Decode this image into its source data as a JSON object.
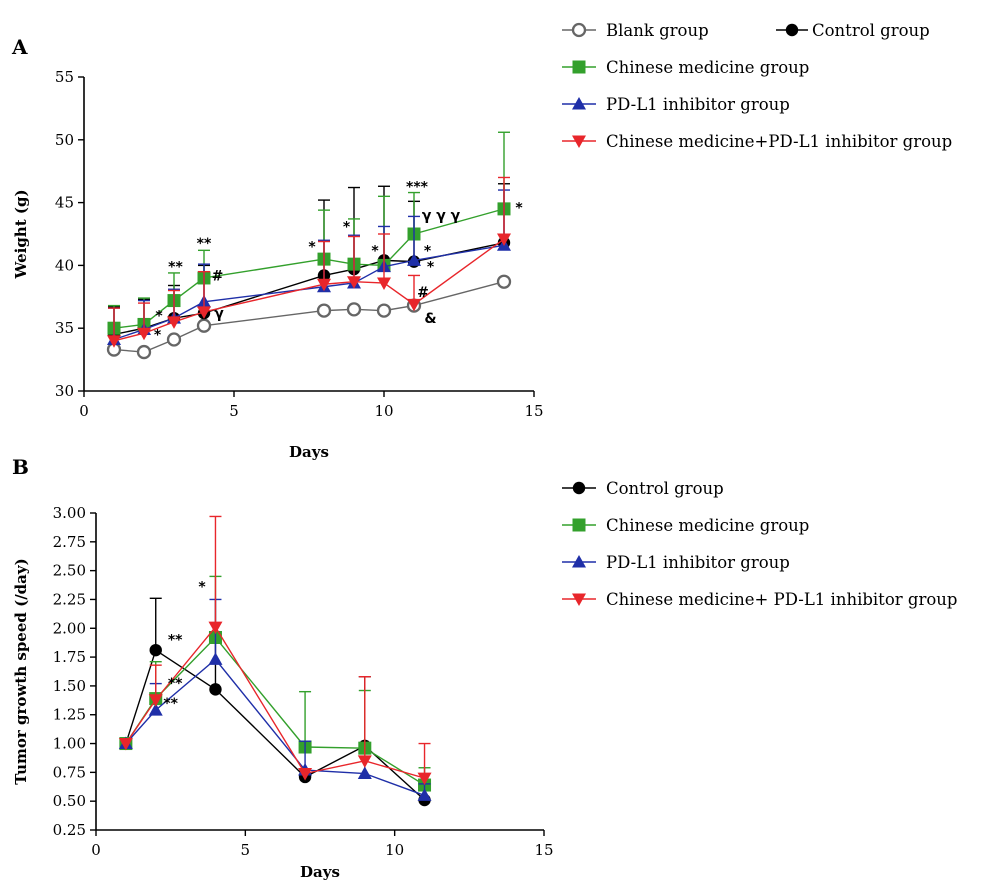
{
  "chart_data": [
    {
      "panel": "A",
      "type": "line",
      "xlabel": "Days",
      "ylabel": "Weight (g)",
      "xlim": [
        0,
        15
      ],
      "ylim": [
        30,
        55
      ],
      "xticks": [
        0,
        5,
        10,
        15
      ],
      "yticks": [
        30,
        35,
        40,
        45,
        50,
        55
      ],
      "grid": false,
      "legend_position": "right",
      "series": [
        {
          "name": "Blank group",
          "marker": "open-circle",
          "color": "#666666",
          "x": [
            1,
            2,
            3,
            4,
            8,
            9,
            10,
            11,
            14
          ],
          "y": [
            33.3,
            33.1,
            34.1,
            35.2,
            36.4,
            36.5,
            36.4,
            36.8,
            38.7
          ],
          "err": [
            0,
            0,
            0,
            0,
            0,
            0,
            0,
            0,
            0
          ]
        },
        {
          "name": "Control group",
          "marker": "filled-circle",
          "color": "#000000",
          "x": [
            1,
            2,
            3,
            4,
            8,
            9,
            10,
            11,
            14
          ],
          "y": [
            34.5,
            35.0,
            35.8,
            36.2,
            39.2,
            39.7,
            40.4,
            40.3,
            41.8
          ],
          "err": [
            2.2,
            2.3,
            2.6,
            3.8,
            6.0,
            6.5,
            5.9,
            4.8,
            4.7
          ]
        },
        {
          "name": "Chinese medicine group",
          "marker": "filled-square",
          "color": "#33a02c",
          "x": [
            1,
            2,
            3,
            4,
            8,
            9,
            10,
            11,
            14
          ],
          "y": [
            35.0,
            35.3,
            37.2,
            39.0,
            40.5,
            40.1,
            40.0,
            42.5,
            44.5
          ],
          "err": [
            1.8,
            2.1,
            2.2,
            2.2,
            3.9,
            3.6,
            5.5,
            3.3,
            6.1
          ]
        },
        {
          "name": "PD-L1 inhibitor group",
          "marker": "filled-triangle-up",
          "color": "#1f2fa8",
          "x": [
            1,
            2,
            3,
            4,
            8,
            9,
            10,
            11,
            14
          ],
          "y": [
            34.1,
            34.9,
            35.8,
            37.1,
            38.3,
            38.6,
            39.9,
            40.4,
            41.6
          ],
          "err": [
            2.5,
            2.3,
            2.3,
            3.0,
            3.7,
            3.8,
            3.2,
            3.5,
            4.4
          ]
        },
        {
          "name": "Chinese medicine+PD-L1 inhibitor group",
          "marker": "filled-triangle-down",
          "color": "#e8262b",
          "x": [
            1,
            2,
            3,
            4,
            8,
            9,
            10,
            11,
            14
          ],
          "y": [
            34.0,
            34.6,
            35.5,
            36.3,
            38.5,
            38.7,
            38.6,
            36.9,
            42.1
          ],
          "err": [
            2.6,
            2.4,
            2.5,
            3.2,
            3.4,
            3.6,
            3.9,
            2.3,
            4.9
          ]
        }
      ],
      "annotations": [
        {
          "text": "*",
          "x": 2.5,
          "y": 35.6
        },
        {
          "text": "*",
          "x": 2.45,
          "y": 34.1
        },
        {
          "text": "**",
          "x": 3.05,
          "y": 39.5
        },
        {
          "text": "**",
          "x": 4.0,
          "y": 41.4
        },
        {
          "text": "#",
          "x": 4.45,
          "y": 38.8
        },
        {
          "text": "γ",
          "x": 4.5,
          "y": 35.8
        },
        {
          "text": "*",
          "x": 7.6,
          "y": 41.1
        },
        {
          "text": "*",
          "x": 8.75,
          "y": 42.7
        },
        {
          "text": "*",
          "x": 9.7,
          "y": 40.8
        },
        {
          "text": "***",
          "x": 11.1,
          "y": 45.9
        },
        {
          "text": "γ γ γ",
          "x": 11.9,
          "y": 43.6
        },
        {
          "text": "*",
          "x": 11.45,
          "y": 40.8
        },
        {
          "text": "*",
          "x": 11.55,
          "y": 39.5
        },
        {
          "text": "#",
          "x": 11.3,
          "y": 37.5
        },
        {
          "text": "&",
          "x": 11.55,
          "y": 35.4
        },
        {
          "text": "*",
          "x": 14.5,
          "y": 44.2
        }
      ]
    },
    {
      "panel": "B",
      "type": "line",
      "xlabel": "Days",
      "ylabel": "Tumor growth speed (/day)",
      "xlim": [
        0,
        15
      ],
      "ylim": [
        0.25,
        3.0
      ],
      "xticks": [
        0,
        5,
        10,
        15
      ],
      "yticks": [
        0.25,
        0.5,
        0.75,
        1.0,
        1.25,
        1.5,
        1.75,
        2.0,
        2.25,
        2.5,
        2.75,
        3.0
      ],
      "grid": false,
      "legend_position": "right",
      "series": [
        {
          "name": "Control group",
          "marker": "filled-circle",
          "color": "#000000",
          "x": [
            1,
            2,
            4,
            7,
            9,
            11
          ],
          "y": [
            1.0,
            1.81,
            1.47,
            0.71,
            0.98,
            0.51
          ],
          "err": [
            0,
            0.45,
            0.4,
            0,
            0.6,
            0
          ]
        },
        {
          "name": "Chinese medicine group",
          "marker": "filled-square",
          "color": "#33a02c",
          "x": [
            1,
            2,
            4,
            7,
            9,
            11
          ],
          "y": [
            1.0,
            1.39,
            1.92,
            0.97,
            0.96,
            0.64
          ],
          "err": [
            0,
            0.32,
            0.53,
            0.48,
            0.5,
            0.15
          ]
        },
        {
          "name": "PD-L1 inhibitor group",
          "marker": "filled-triangle-up",
          "color": "#1f2fa8",
          "x": [
            1,
            2,
            4,
            7,
            9,
            11
          ],
          "y": [
            1.0,
            1.29,
            1.73,
            0.77,
            0.74,
            0.55
          ],
          "err": [
            0,
            0.23,
            0.52,
            0.25,
            0.15,
            0.1
          ]
        },
        {
          "name": "Chinese medicine+ PD-L1 inhibitor group",
          "marker": "filled-triangle-down",
          "color": "#e8262b",
          "x": [
            1,
            2,
            4,
            7,
            9,
            11
          ],
          "y": [
            1.0,
            1.38,
            2.01,
            0.74,
            0.85,
            0.7
          ],
          "err": [
            0,
            0.3,
            0.96,
            0,
            0.73,
            0.3
          ]
        }
      ],
      "annotations": [
        {
          "text": "**",
          "x": 2.65,
          "y": 1.86
        },
        {
          "text": "**",
          "x": 2.65,
          "y": 1.48
        },
        {
          "text": "**",
          "x": 2.5,
          "y": 1.31
        },
        {
          "text": "*",
          "x": 3.55,
          "y": 2.32
        }
      ]
    }
  ]
}
